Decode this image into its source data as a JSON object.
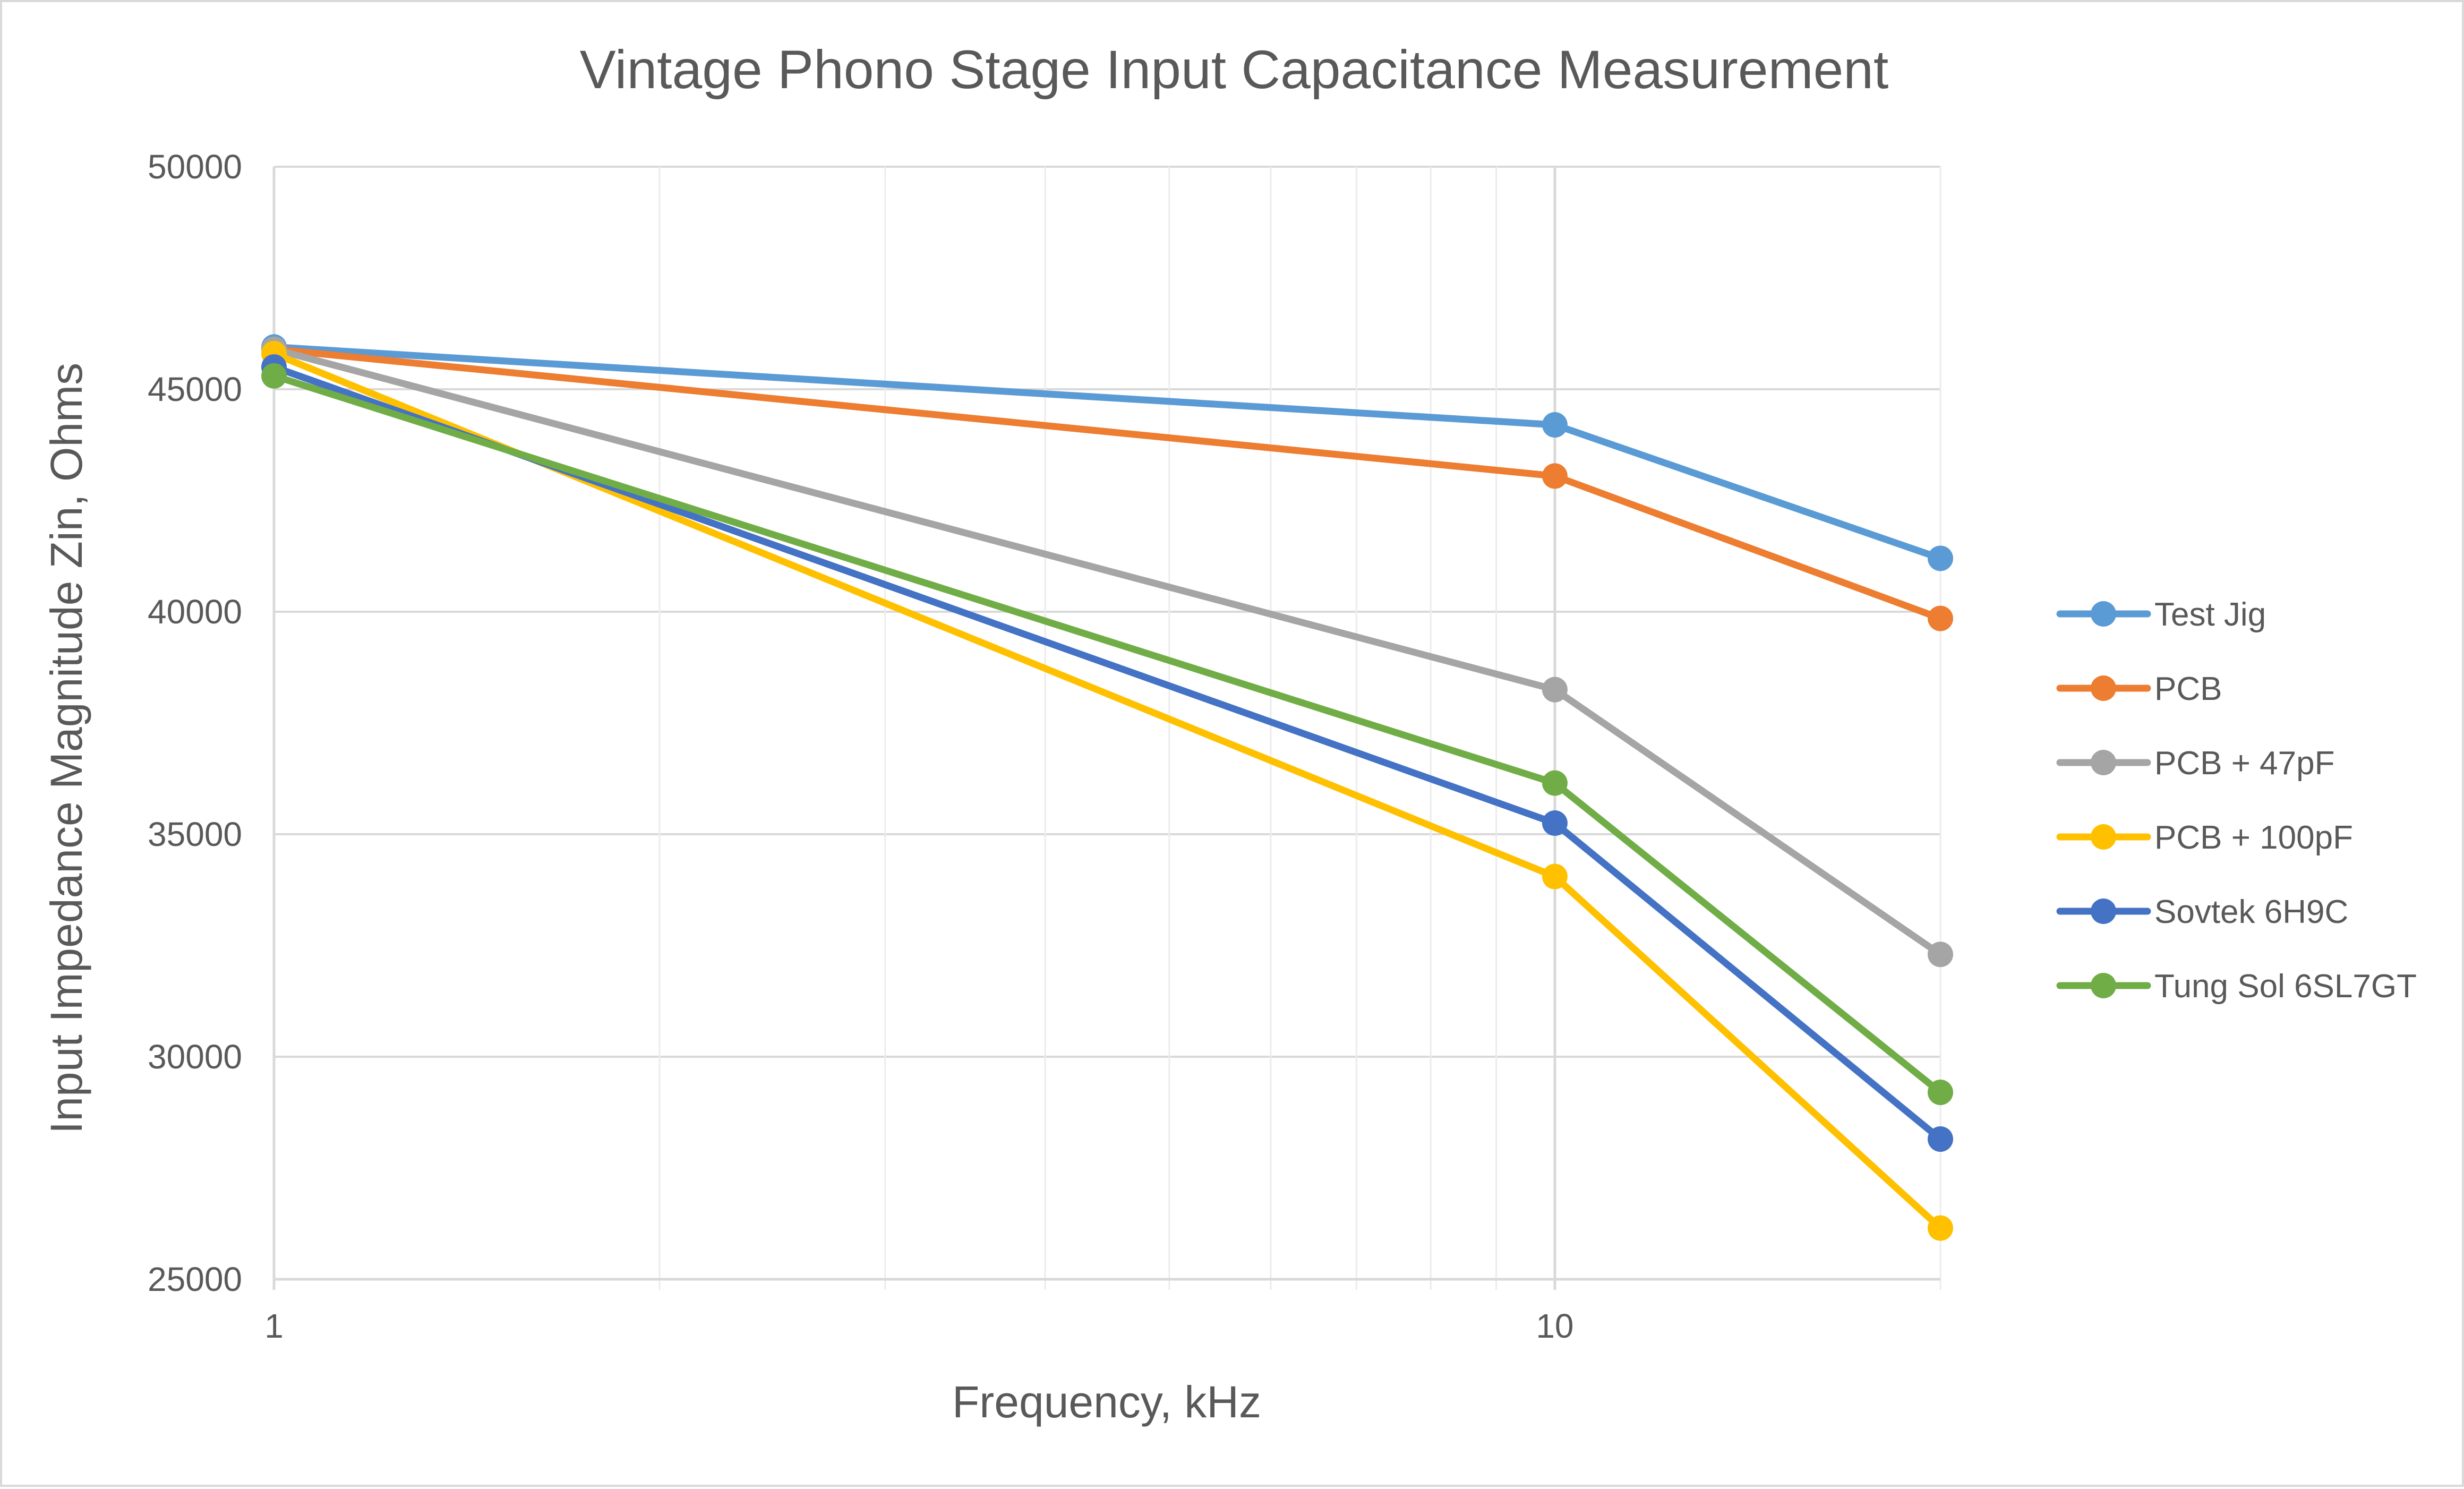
{
  "chart_data": {
    "type": "line",
    "title": "Vintage Phono Stage Input Capacitance Measurement",
    "xlabel": "Frequency, kHz",
    "ylabel": "Input Impedance Magnitude Zin, Ohms",
    "x_scale": "log",
    "xlim": [
      1,
      20
    ],
    "ylim": [
      25000,
      50000
    ],
    "x_ticks": [
      1,
      10
    ],
    "x_tick_labels": [
      "1",
      "10"
    ],
    "y_ticks": [
      25000,
      30000,
      35000,
      40000,
      45000,
      50000
    ],
    "y_tick_labels": [
      "25000",
      "30000",
      "35000",
      "40000",
      "45000",
      "50000"
    ],
    "grid": true,
    "legend_position": "right",
    "x": [
      1,
      10,
      20
    ],
    "series": [
      {
        "name": "Test Jig",
        "color": "#5b9bd5",
        "values": [
          45950,
          44200,
          41200
        ]
      },
      {
        "name": "PCB",
        "color": "#ed7d31",
        "values": [
          45900,
          43050,
          39850
        ]
      },
      {
        "name": "PCB + 47pF",
        "color": "#a5a5a5",
        "values": [
          45900,
          38250,
          32300
        ]
      },
      {
        "name": "PCB + 100pF",
        "color": "#ffc000",
        "values": [
          45800,
          34050,
          26150
        ]
      },
      {
        "name": "Sovtek 6H9C",
        "color": "#4472c4",
        "values": [
          45500,
          35250,
          28150
        ]
      },
      {
        "name": "Tung Sol 6SL7GT",
        "color": "#70ad47",
        "values": [
          45300,
          36150,
          29200
        ]
      }
    ]
  }
}
